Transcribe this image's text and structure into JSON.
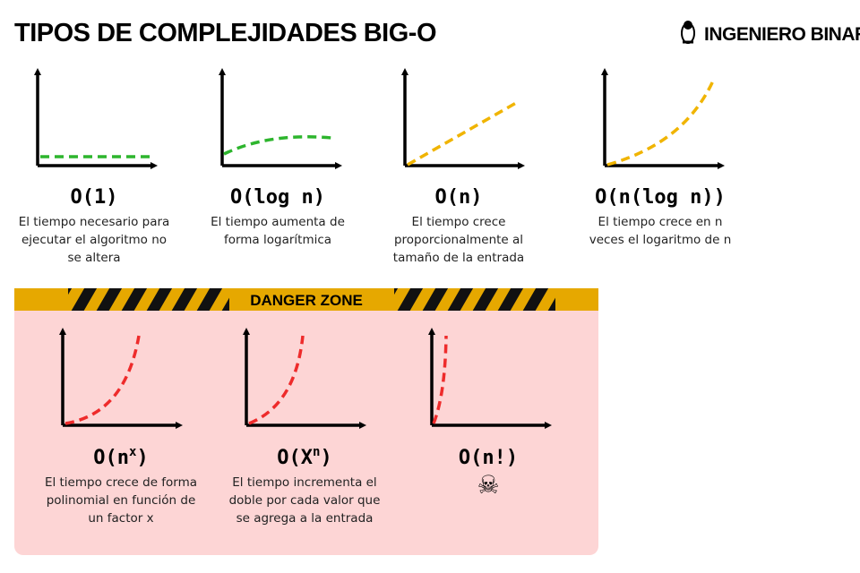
{
  "header": {
    "title": "TIPOS DE COMPLEJIDADES BIG-O",
    "brand": "INGENIERO BINARIO"
  },
  "cards": [
    {
      "label": "O(1)",
      "description_lines": [
        "El tiempo necesario para",
        "ejecutar el algoritmo no",
        "se altera"
      ]
    },
    {
      "label": "O(log n)",
      "description_lines": [
        "El tiempo aumenta de",
        "forma logarítmica"
      ]
    },
    {
      "label": "O(n)",
      "description_lines": [
        "El tiempo crece",
        "proporcionalmente al",
        "tamaño de la entrada"
      ]
    },
    {
      "label": "O(n(log n))",
      "description_lines": [
        "El tiempo crece en n",
        "veces el logaritmo de n"
      ]
    }
  ],
  "danger_zone": {
    "title": "DANGER ZONE",
    "cards": [
      {
        "label": "O(n",
        "label_sup": "x",
        "label_end": ")",
        "description_lines": [
          "El tiempo crece de forma",
          "polinomial en función de",
          "un factor x"
        ]
      },
      {
        "label": "O(X",
        "label_sup": "n",
        "label_end": ")",
        "description_lines": [
          "El tiempo incrementa el",
          "doble por cada valor que",
          "se agrega a la entrada"
        ]
      },
      {
        "label": "O(n!)",
        "icon": "☠"
      }
    ]
  }
}
